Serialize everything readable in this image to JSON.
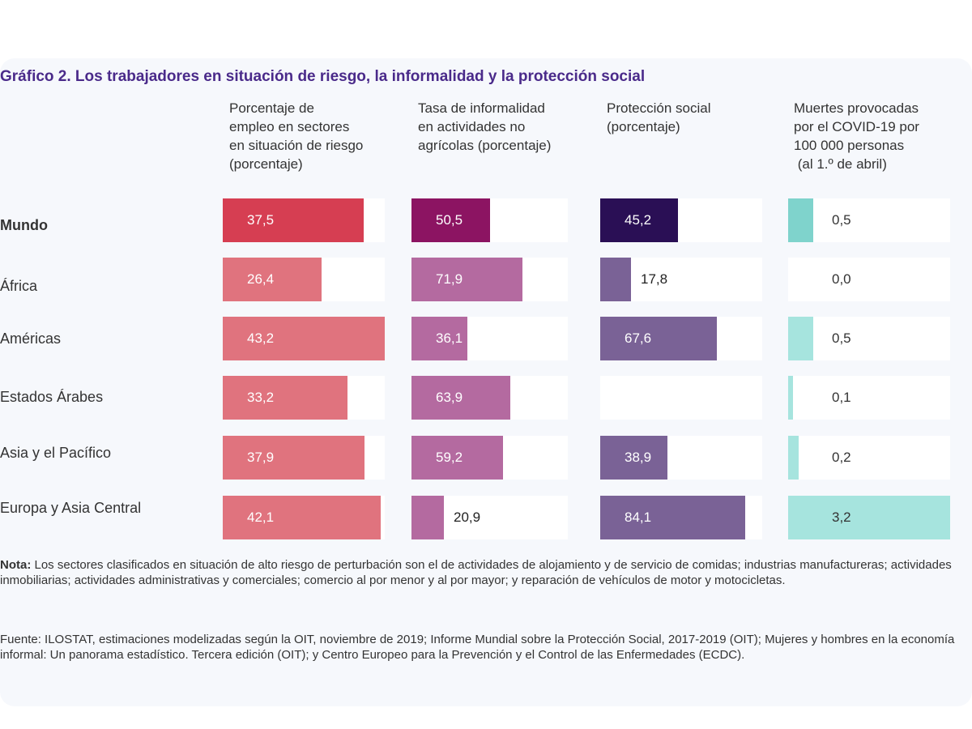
{
  "chart_data": {
    "type": "bar",
    "title": "Gráfico 2. Los trabajadores en situación de riesgo, la informalidad y la protección social",
    "categories": [
      "Mundo",
      "África",
      "Américas",
      "Estados Árabes",
      "Asia y el Pacífico",
      "Europa y Asia Central"
    ],
    "series": [
      {
        "name": "Porcentaje de empleo en sectores en situación de riesgo (porcentaje)",
        "values": [
          37.5,
          26.4,
          43.2,
          33.2,
          37.9,
          42.1
        ],
        "labels": [
          "37,5",
          "26,4",
          "43,2",
          "33,2",
          "37,9",
          "42,1"
        ],
        "xlim": [
          0,
          43.2
        ],
        "colors": [
          "#d63e52",
          "#e0737e",
          "#e0737e",
          "#e0737e",
          "#e0737e",
          "#e0737e"
        ]
      },
      {
        "name": "Tasa de informalidad en actividades no agrícolas (porcentaje)",
        "values": [
          50.5,
          71.9,
          36.1,
          63.9,
          59.2,
          20.9
        ],
        "labels": [
          "50,5",
          "71,9",
          "36,1",
          "63,9",
          "59,2",
          "20,9"
        ],
        "xlim": [
          0,
          101
        ],
        "colors": [
          "#8c1462",
          "#b46aa0",
          "#b46aa0",
          "#b46aa0",
          "#b46aa0",
          "#b46aa0"
        ]
      },
      {
        "name": "Protección social (porcentaje)",
        "values": [
          45.2,
          17.8,
          67.6,
          null,
          38.9,
          84.1
        ],
        "labels": [
          "45,2",
          "17,8",
          "67,6",
          "",
          "38,9",
          "84,1"
        ],
        "xlim": [
          0,
          94
        ],
        "colors": [
          "#2a0f55",
          "#7a6296",
          "#7a6296",
          "#7a6296",
          "#7a6296",
          "#7a6296"
        ]
      },
      {
        "name": "Muertes provocadas por el COVID-19 por 100 000 personas (al 1.º de abril)",
        "values": [
          0.5,
          0.0,
          0.5,
          0.1,
          0.2,
          3.2
        ],
        "labels": [
          "0,5",
          "0,0",
          "0,5",
          "0,1",
          "0,2",
          "3,2"
        ],
        "xlim": [
          0,
          3.2
        ],
        "colors": [
          "#7fd3cc",
          "#a6e4de",
          "#a6e4de",
          "#a6e4de",
          "#a6e4de",
          "#a6e4de"
        ]
      }
    ],
    "column_headers": [
      [
        "Porcentaje de",
        "empleo en sectores",
        "en situación de riesgo",
        "(porcentaje)"
      ],
      [
        "Tasa de informalidad",
        "en actividades no",
        "agrícolas (porcentaje)"
      ],
      [
        "Protección social",
        "(porcentaje)"
      ],
      [
        "Muertes provocadas",
        "por el COVID-19 por",
        "100 000 personas",
        " (al 1.º de abril)"
      ]
    ]
  },
  "note": {
    "label": "Nota:",
    "text": " Los sectores clasificados en situación de alto riesgo de perturbación son el de actividades de alojamiento y de servicio de comidas; industrias manufactureras; actividades inmobiliarias; actividades administrativas y comerciales; comercio al por menor y al por mayor; y reparación de vehículos de motor y motocicletas."
  },
  "source": "Fuente: ILOSTAT, estimaciones modelizadas según la OIT, noviembre de 2019; Informe Mundial sobre la Protección Social, 2017-2019 (OIT); Mujeres y hombres en la economía informal: Un panorama estadístico. Tercera edición (OIT); y Centro Europeo para la Prevención y el Control de las Enfermedades (ECDC)."
}
